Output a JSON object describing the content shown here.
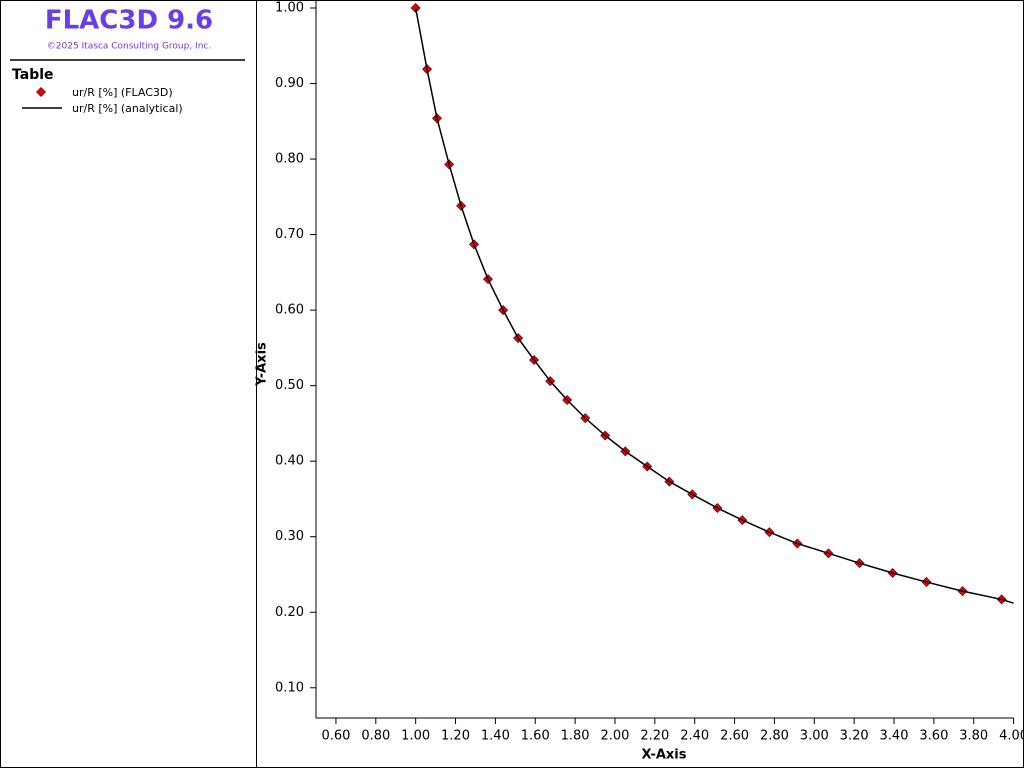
{
  "chart_data": {
    "type": "xy",
    "title": "FLAC3D 9.6",
    "subtitle": "©2025 Itasca Consulting Group, Inc.",
    "legend_title": "Table",
    "x_label": "X-Axis",
    "y_label": "Y-Axis",
    "xlim": [
      0.5,
      4.0
    ],
    "ylim": [
      0.06,
      1.0
    ],
    "xticks": [
      {
        "value": 0.6,
        "label": "0.60"
      },
      {
        "value": 0.8,
        "label": "0.80"
      },
      {
        "value": 1.0,
        "label": "1.00"
      },
      {
        "value": 1.2,
        "label": "1.20"
      },
      {
        "value": 1.4,
        "label": "1.40"
      },
      {
        "value": 1.6,
        "label": "1.60"
      },
      {
        "value": 1.8,
        "label": "1.80"
      },
      {
        "value": 2.0,
        "label": "2.00"
      },
      {
        "value": 2.2,
        "label": "2.20"
      },
      {
        "value": 2.4,
        "label": "2.40"
      },
      {
        "value": 2.6,
        "label": "2.60"
      },
      {
        "value": 2.8,
        "label": "2.80"
      },
      {
        "value": 3.0,
        "label": "3.00"
      },
      {
        "value": 3.2,
        "label": "3.20"
      },
      {
        "value": 3.4,
        "label": "3.40"
      },
      {
        "value": 3.6,
        "label": "3.60"
      },
      {
        "value": 3.8,
        "label": "3.80"
      },
      {
        "value": 4.0,
        "label": "4.00"
      }
    ],
    "yticks": [
      {
        "value": 0.1,
        "label": "0.10"
      },
      {
        "value": 0.2,
        "label": "0.20"
      },
      {
        "value": 0.3,
        "label": "0.30"
      },
      {
        "value": 0.4,
        "label": "0.40"
      },
      {
        "value": 0.5,
        "label": "0.50"
      },
      {
        "value": 0.6,
        "label": "0.60"
      },
      {
        "value": 0.7,
        "label": "0.70"
      },
      {
        "value": 0.8,
        "label": "0.80"
      },
      {
        "value": 0.9,
        "label": "0.90"
      },
      {
        "value": 1.0,
        "label": "1.00"
      }
    ],
    "series": [
      {
        "name": "ur/R [%] (FLAC3D)",
        "type": "scatter",
        "color": "#e8000b",
        "x": [
          1.0,
          1.057,
          1.107,
          1.168,
          1.228,
          1.293,
          1.363,
          1.439,
          1.514,
          1.594,
          1.675,
          1.76,
          1.851,
          1.951,
          2.052,
          2.162,
          2.273,
          2.388,
          2.514,
          2.639,
          2.775,
          2.915,
          3.071,
          3.227,
          3.393,
          3.563,
          3.744,
          3.94
        ],
        "values": [
          1.0,
          0.919,
          0.854,
          0.793,
          0.738,
          0.687,
          0.641,
          0.6,
          0.563,
          0.534,
          0.506,
          0.481,
          0.457,
          0.434,
          0.413,
          0.393,
          0.373,
          0.356,
          0.338,
          0.322,
          0.306,
          0.291,
          0.278,
          0.265,
          0.252,
          0.24,
          0.228,
          0.217
        ]
      },
      {
        "name": "ur/R [%] (analytical)",
        "type": "line",
        "color": "#000000",
        "x": [
          1.0,
          1.057,
          1.107,
          1.168,
          1.228,
          1.293,
          1.363,
          1.439,
          1.514,
          1.594,
          1.675,
          1.76,
          1.851,
          1.951,
          2.052,
          2.162,
          2.273,
          2.388,
          2.514,
          2.639,
          2.775,
          2.915,
          3.071,
          3.227,
          3.393,
          3.563,
          3.744,
          3.94,
          4.0
        ],
        "values": [
          1.0,
          0.919,
          0.854,
          0.793,
          0.738,
          0.687,
          0.641,
          0.6,
          0.563,
          0.534,
          0.506,
          0.481,
          0.457,
          0.434,
          0.413,
          0.393,
          0.373,
          0.356,
          0.338,
          0.322,
          0.306,
          0.291,
          0.278,
          0.265,
          0.252,
          0.24,
          0.228,
          0.217,
          0.212
        ]
      }
    ]
  }
}
